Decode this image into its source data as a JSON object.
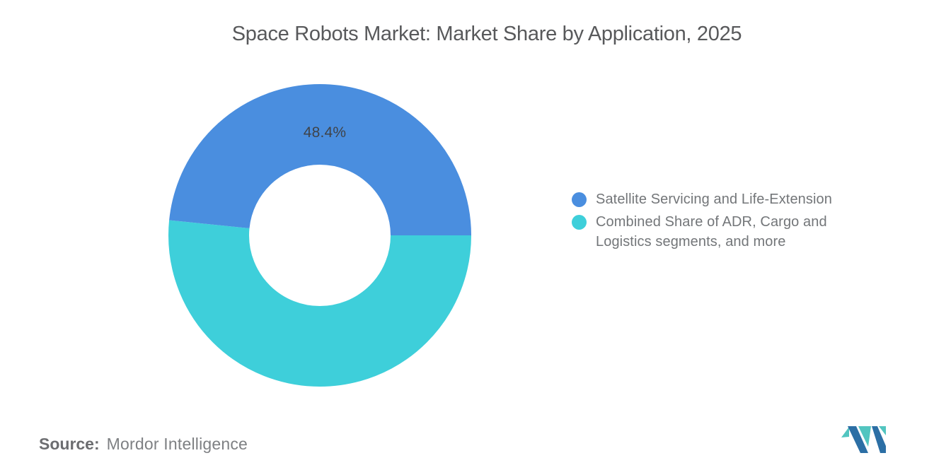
{
  "title": "Space Robots Market: Market Share by Application, 2025",
  "chart_data": {
    "type": "pie",
    "subtype": "donut",
    "title": "Space Robots Market: Market Share by Application, 2025",
    "inner_radius_ratio": 0.467,
    "start_angle": "3-oclock",
    "direction": "clockwise-from-right: second slice first",
    "legend_position": "right",
    "slices": [
      {
        "label": "Satellite Servicing and Life-Extension",
        "value": 48.4,
        "data_label": "48.4%",
        "color": "#4A8EDF",
        "legend_lines": [
          "Satellite Servicing and Life-Extension"
        ]
      },
      {
        "label": "Combined Share of ADR, Cargo and Logistics segments, and more",
        "value": 51.6,
        "data_label": "",
        "color": "#3ECFDA",
        "legend_lines": [
          "Combined Share of ADR, Cargo and",
          "Logistics segments, and more"
        ]
      }
    ],
    "data_label_color": "#3F4349"
  },
  "source": {
    "label": "Source:",
    "value": "Mordor Intelligence"
  },
  "logo": {
    "name": "mordor-intelligence-logo",
    "colors": {
      "blue": "#2C6FA5",
      "teal": "#52C5C0"
    }
  }
}
